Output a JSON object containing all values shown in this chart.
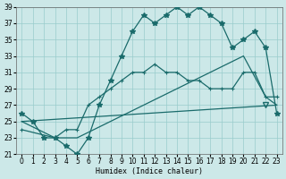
{
  "xlabel": "Humidex (Indice chaleur)",
  "bg_color": "#cce8e8",
  "grid_color": "#99cccc",
  "line_color": "#1a6b6b",
  "xmin": -0.5,
  "xmax": 23.5,
  "ymin": 21,
  "ymax": 39,
  "yticks": [
    21,
    23,
    25,
    27,
    29,
    31,
    33,
    35,
    37,
    39
  ],
  "xticks": [
    0,
    1,
    2,
    3,
    4,
    5,
    6,
    7,
    8,
    9,
    10,
    11,
    12,
    13,
    14,
    15,
    16,
    17,
    18,
    19,
    20,
    21,
    22,
    23
  ],
  "curve1_x": [
    0,
    1,
    2,
    3,
    4,
    5,
    6,
    7,
    8,
    9,
    10,
    11,
    12,
    13,
    14,
    15,
    16,
    17,
    18,
    19,
    20,
    21,
    22,
    23
  ],
  "curve1_y": [
    26,
    25,
    23,
    23,
    22,
    21,
    23,
    27,
    30,
    33,
    36,
    38,
    37,
    38,
    39,
    38,
    39,
    38,
    37,
    34,
    35,
    36,
    34,
    26
  ],
  "curve2_x": [
    0,
    3,
    4,
    5,
    6,
    7,
    8,
    9,
    10,
    11,
    12,
    13,
    14,
    15,
    16,
    17,
    18,
    19,
    20,
    21,
    22,
    23
  ],
  "curve2_y": [
    24,
    23,
    24,
    24,
    27,
    28,
    29,
    30,
    31,
    31,
    32,
    31,
    31,
    30,
    30,
    29,
    29,
    29,
    31,
    31,
    28,
    28
  ],
  "curve3_x": [
    0,
    3,
    5,
    20,
    22,
    23
  ],
  "curve3_y": [
    25,
    23,
    23,
    33,
    28,
    27
  ],
  "curve4_x": [
    0,
    23
  ],
  "curve4_y": [
    25,
    27
  ],
  "triangle_x": 22,
  "triangle_y": 27
}
